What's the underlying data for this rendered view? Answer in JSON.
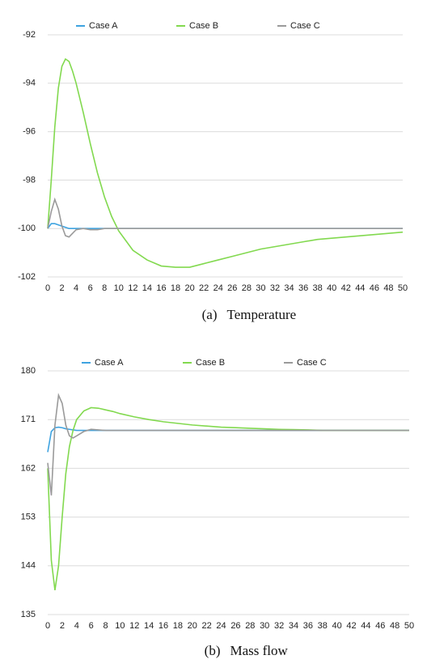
{
  "chart_data": [
    {
      "type": "line",
      "label": "(a)",
      "title": "Temperature",
      "x": [
        0,
        0.5,
        1,
        1.5,
        2,
        2.5,
        3,
        3.5,
        4,
        5,
        6,
        7,
        8,
        9,
        10,
        12,
        14,
        16,
        18,
        20,
        22,
        24,
        26,
        28,
        30,
        32,
        34,
        36,
        38,
        40,
        42,
        44,
        46,
        48,
        50
      ],
      "xlim": [
        0,
        50
      ],
      "xticks": [
        0,
        2,
        4,
        6,
        8,
        10,
        12,
        14,
        16,
        18,
        20,
        22,
        24,
        26,
        28,
        30,
        32,
        34,
        36,
        38,
        40,
        42,
        44,
        46,
        48,
        50
      ],
      "ylim": [
        -102,
        -92
      ],
      "yticks": [
        -92,
        -94,
        -96,
        -98,
        -100,
        -102
      ],
      "grid": true,
      "legend": "top",
      "series": [
        {
          "name": "Case A",
          "color": "#3ea3e0",
          "values": [
            -100,
            -99.8,
            -99.8,
            -99.85,
            -99.9,
            -99.95,
            -100,
            -100,
            -100,
            -100,
            -100,
            -100,
            -100,
            -100,
            -100,
            -100,
            -100,
            -100,
            -100,
            -100,
            -100,
            -100,
            -100,
            -100,
            -100,
            -100,
            -100,
            -100,
            -100,
            -100,
            -100,
            -100,
            -100,
            -100,
            -100
          ]
        },
        {
          "name": "Case B",
          "color": "#82d94f",
          "values": [
            -100,
            -98,
            -95.8,
            -94.2,
            -93.3,
            -93,
            -93.1,
            -93.5,
            -94,
            -95.2,
            -96.5,
            -97.7,
            -98.7,
            -99.5,
            -100.1,
            -100.9,
            -101.3,
            -101.55,
            -101.6,
            -101.6,
            -101.45,
            -101.3,
            -101.15,
            -101,
            -100.85,
            -100.75,
            -100.65,
            -100.55,
            -100.45,
            -100.4,
            -100.35,
            -100.3,
            -100.25,
            -100.2,
            -100.15
          ]
        },
        {
          "name": "Case C",
          "color": "#9a9a9a",
          "values": [
            -100,
            -99.3,
            -98.8,
            -99.2,
            -99.9,
            -100.3,
            -100.35,
            -100.2,
            -100.05,
            -100,
            -100.05,
            -100.05,
            -100,
            -100,
            -100,
            -100,
            -100,
            -100,
            -100,
            -100,
            -100,
            -100,
            -100,
            -100,
            -100,
            -100,
            -100,
            -100,
            -100,
            -100,
            -100,
            -100,
            -100,
            -100,
            -100
          ]
        }
      ]
    },
    {
      "type": "line",
      "label": "(b)",
      "title": "Mass flow",
      "x": [
        0,
        0.5,
        1,
        1.5,
        2,
        2.5,
        3,
        3.5,
        4,
        5,
        6,
        7,
        8,
        9,
        10,
        12,
        14,
        16,
        18,
        20,
        22,
        24,
        26,
        28,
        30,
        32,
        34,
        36,
        38,
        40,
        42,
        44,
        46,
        48,
        50
      ],
      "xlim": [
        0,
        50
      ],
      "xticks": [
        0,
        2,
        4,
        6,
        8,
        10,
        12,
        14,
        16,
        18,
        20,
        22,
        24,
        26,
        28,
        30,
        32,
        34,
        36,
        38,
        40,
        42,
        44,
        46,
        48,
        50
      ],
      "ylim": [
        135,
        180
      ],
      "yticks": [
        180,
        171,
        162,
        153,
        144,
        135
      ],
      "grid": true,
      "legend": "top",
      "series": [
        {
          "name": "Case A",
          "color": "#3ea3e0",
          "values": [
            165,
            168.8,
            169.5,
            169.6,
            169.5,
            169.3,
            169.2,
            169.1,
            169,
            169,
            169,
            169,
            169,
            169,
            169,
            169,
            169,
            169,
            169,
            169,
            169,
            169,
            169,
            169,
            169,
            169,
            169,
            169,
            169,
            169,
            169,
            169,
            169,
            169,
            169
          ]
        },
        {
          "name": "Case B",
          "color": "#82d94f",
          "values": [
            162,
            145,
            139.5,
            144,
            153,
            161,
            166,
            169,
            171,
            172.6,
            173.2,
            173.1,
            172.8,
            172.5,
            172.1,
            171.5,
            171,
            170.6,
            170.3,
            170,
            169.8,
            169.6,
            169.5,
            169.4,
            169.3,
            169.2,
            169.15,
            169.1,
            169,
            169,
            169,
            169,
            169,
            169,
            169
          ]
        },
        {
          "name": "Case C",
          "color": "#9a9a9a",
          "values": [
            163,
            157,
            170,
            175.5,
            174,
            170,
            168,
            167.6,
            168,
            168.8,
            169.2,
            169.1,
            169,
            169,
            169,
            169,
            169,
            169,
            169,
            169,
            169,
            169,
            169,
            169,
            169,
            169,
            169,
            169,
            169,
            169,
            169,
            169,
            169,
            169,
            169
          ]
        }
      ]
    }
  ]
}
